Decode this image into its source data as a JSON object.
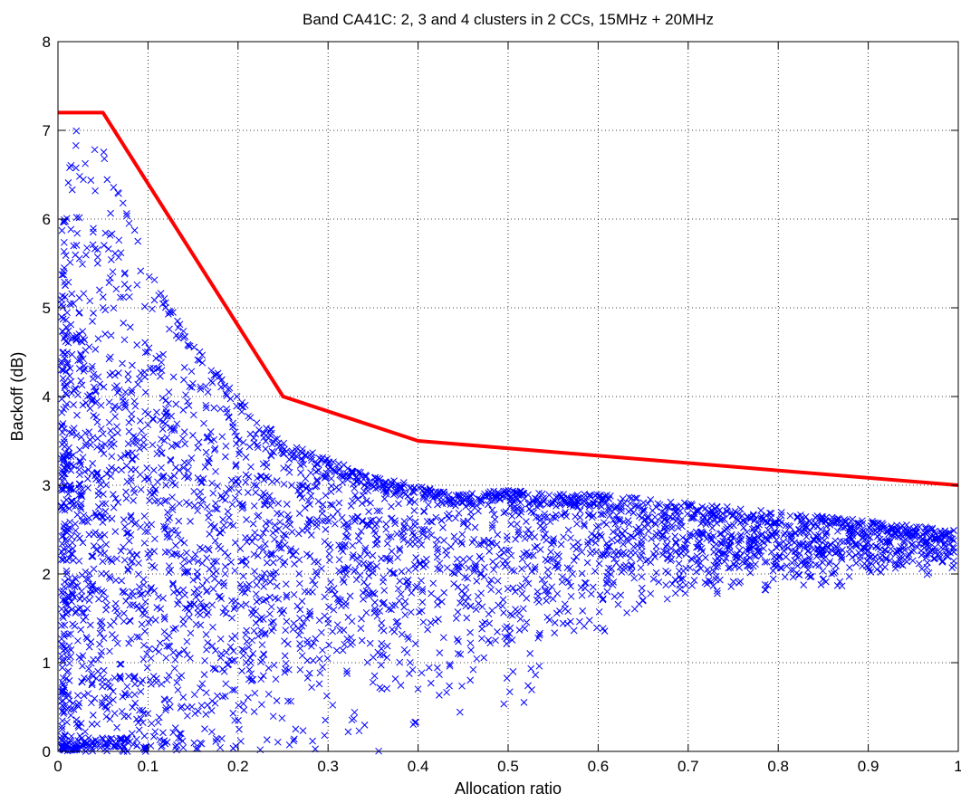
{
  "chart_data": {
    "type": "scatter",
    "title": "Band CA41C: 2, 3 and 4 clusters in 2 CCs, 15MHz + 20MHz",
    "xlabel": "Allocation ratio",
    "ylabel": "Backoff (dB)",
    "xlim": [
      0,
      1
    ],
    "ylim": [
      0,
      8
    ],
    "xticks": [
      "0",
      "0.1",
      "0.2",
      "0.3",
      "0.4",
      "0.5",
      "0.6",
      "0.7",
      "0.8",
      "0.9",
      "1"
    ],
    "yticks": [
      "0",
      "1",
      "2",
      "3",
      "4",
      "5",
      "6",
      "7",
      "8"
    ],
    "grid": true,
    "legend": "none",
    "series": [
      {
        "kind": "line",
        "color": "#ff0000",
        "x": [
          0,
          0.05,
          0.25,
          0.4,
          1.0
        ],
        "y": [
          7.2,
          7.2,
          4.0,
          3.5,
          3.0
        ]
      },
      {
        "kind": "scatter",
        "marker": "x",
        "color": "#0000ff",
        "envelope": {
          "x": [
            0.0,
            0.02,
            0.05,
            0.1,
            0.15,
            0.2,
            0.25,
            0.3,
            0.35,
            0.4,
            0.45,
            0.5,
            0.55,
            0.6,
            0.65,
            0.7,
            0.75,
            0.8,
            0.85,
            0.9,
            0.95,
            1.0
          ],
          "y_max": [
            5.5,
            7.2,
            6.8,
            5.5,
            4.6,
            4.0,
            3.5,
            3.3,
            3.1,
            3.0,
            2.9,
            2.95,
            2.9,
            2.9,
            2.85,
            2.8,
            2.75,
            2.7,
            2.65,
            2.6,
            2.55,
            2.5
          ],
          "y_min": [
            0.0,
            0.0,
            0.0,
            0.0,
            0.0,
            0.0,
            0.0,
            0.0,
            0.0,
            0.0,
            0.1,
            0.4,
            0.8,
            1.3,
            1.6,
            1.7,
            1.75,
            1.8,
            1.85,
            1.85,
            1.9,
            1.95
          ]
        }
      }
    ]
  }
}
